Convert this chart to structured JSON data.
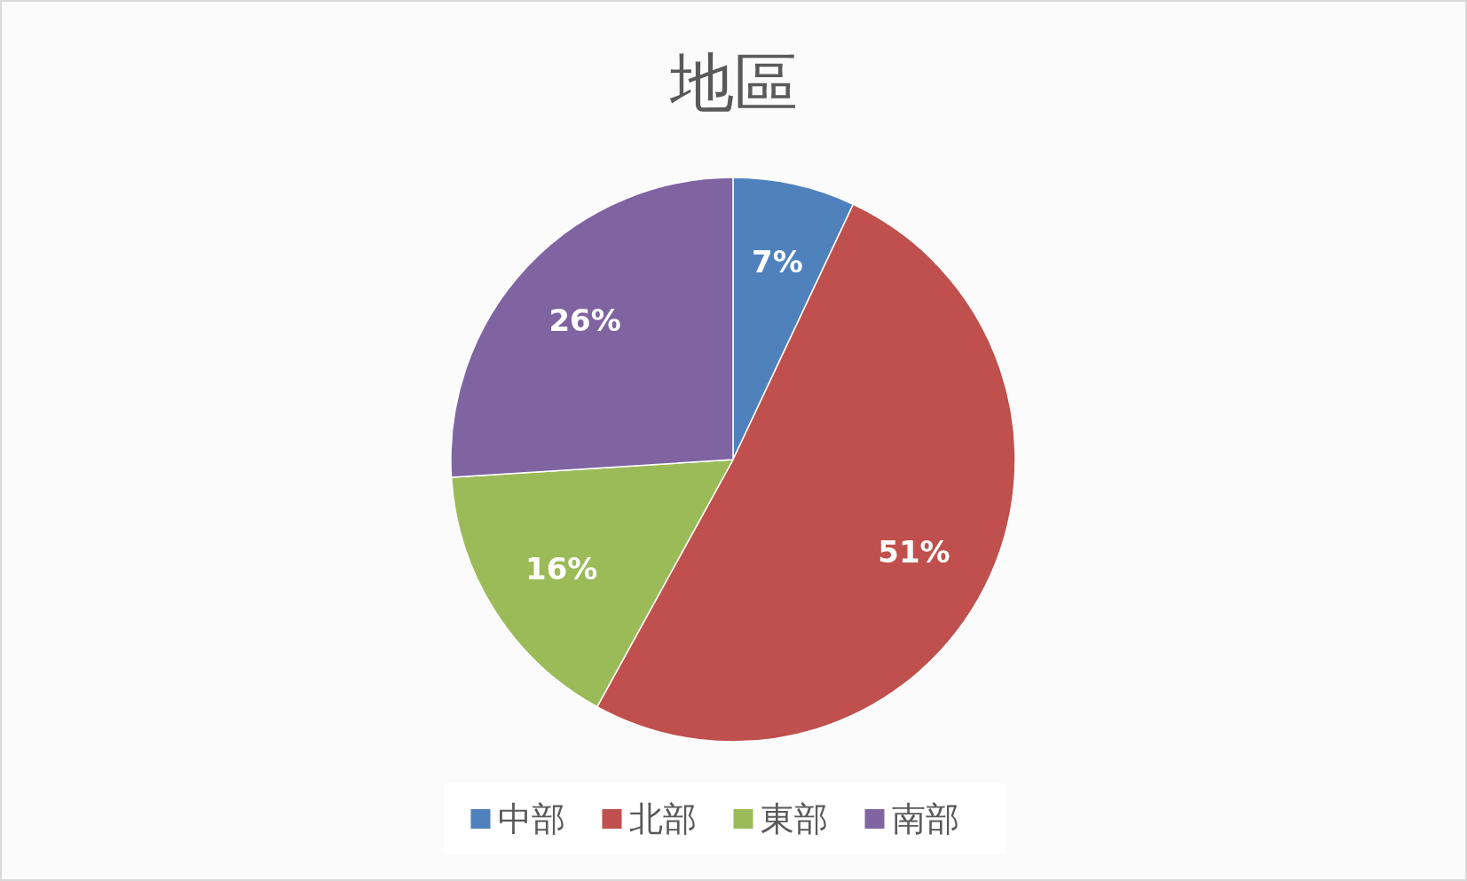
{
  "chart_data": {
    "type": "pie",
    "title": "地區",
    "categories": [
      "中部",
      "北部",
      "東部",
      "南部"
    ],
    "values": [
      7,
      51,
      16,
      26
    ],
    "colors": [
      "#4f81bd",
      "#c0504d",
      "#9bbb59",
      "#8064a2"
    ],
    "value_labels": [
      "7%",
      "51%",
      "16%",
      "26%"
    ],
    "legend": "bottom"
  }
}
